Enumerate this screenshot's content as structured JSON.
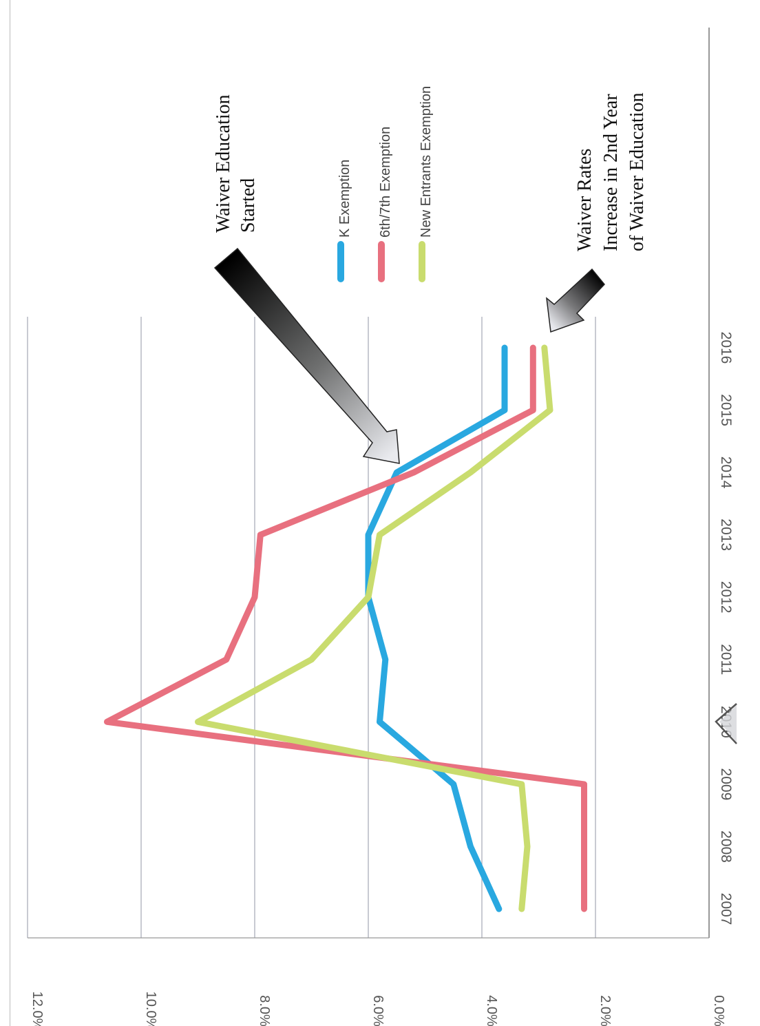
{
  "chart_data": {
    "type": "line",
    "title": "",
    "xlabel": "",
    "ylabel": "",
    "categories": [
      "2007",
      "2008",
      "2009",
      "2010",
      "2011",
      "2012",
      "2013",
      "2014",
      "2015",
      "2016"
    ],
    "y_ticks": [
      "0.0%",
      "2.0%",
      "4.0%",
      "6.0%",
      "8.0%",
      "10.0%",
      "12.0%"
    ],
    "ylim": [
      0,
      12
    ],
    "grid": true,
    "orientation": "rotated-90-clockwise",
    "legend_position": "top-right",
    "series": [
      {
        "name": "K Exemption",
        "color": "#29a8e0",
        "values": [
          3.7,
          4.2,
          4.5,
          5.8,
          5.7,
          6.0,
          6.0,
          5.5,
          3.6,
          3.6
        ]
      },
      {
        "name": "6th/7th Exemption",
        "color": "#e8707f",
        "values": [
          2.2,
          2.2,
          2.2,
          10.6,
          8.5,
          8.0,
          7.9,
          5.2,
          3.1,
          3.1
        ]
      },
      {
        "name": "New Entrants Exemption",
        "color": "#c9dc6e",
        "values": [
          3.3,
          3.2,
          3.3,
          9.0,
          7.0,
          6.0,
          5.8,
          4.2,
          2.8,
          2.9
        ]
      }
    ],
    "annotations": [
      {
        "id": "edu-started",
        "lines": [
          "Waiver Education",
          "Started"
        ]
      },
      {
        "id": "rates-increase",
        "lines": [
          "Waiver Rates",
          "Increase in 2nd Year",
          "of Waiver Education"
        ]
      }
    ]
  }
}
